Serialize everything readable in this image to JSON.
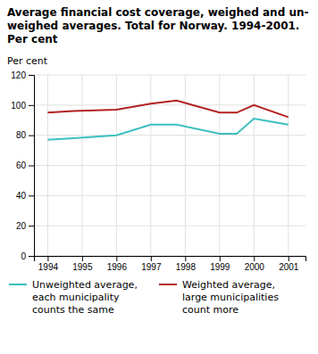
{
  "chart_data": {
    "type": "line",
    "title": "Average financial cost coverage, weighed and un-\nweighed averages. Total for Norway. 1994-2001.\nPer cent",
    "y_label": "Per cent",
    "x": [
      1994,
      1994.75,
      1996,
      1997,
      1997.75,
      1999,
      1999.5,
      2000,
      2001
    ],
    "series": [
      {
        "name": "Unweighted average,\neach municipality\ncounts the same",
        "color": "#3dbfbf",
        "values": [
          77,
          78,
          80,
          87,
          87,
          81,
          81,
          91,
          87
        ]
      },
      {
        "name": "Weighted average,\nlarge municipalities\ncount more",
        "color": "#b22222",
        "values": [
          95,
          96,
          97,
          101,
          103,
          95,
          95,
          100,
          92
        ]
      }
    ],
    "xlim": [
      1993.6,
      2001.5
    ],
    "xticks": [
      1994,
      1995,
      1996,
      1997,
      1998,
      1999,
      2000,
      2001
    ],
    "ylim": [
      0,
      120
    ],
    "yticks": [
      0,
      20,
      40,
      60,
      80,
      100,
      120
    ],
    "grid": true,
    "legend": "bottom"
  }
}
